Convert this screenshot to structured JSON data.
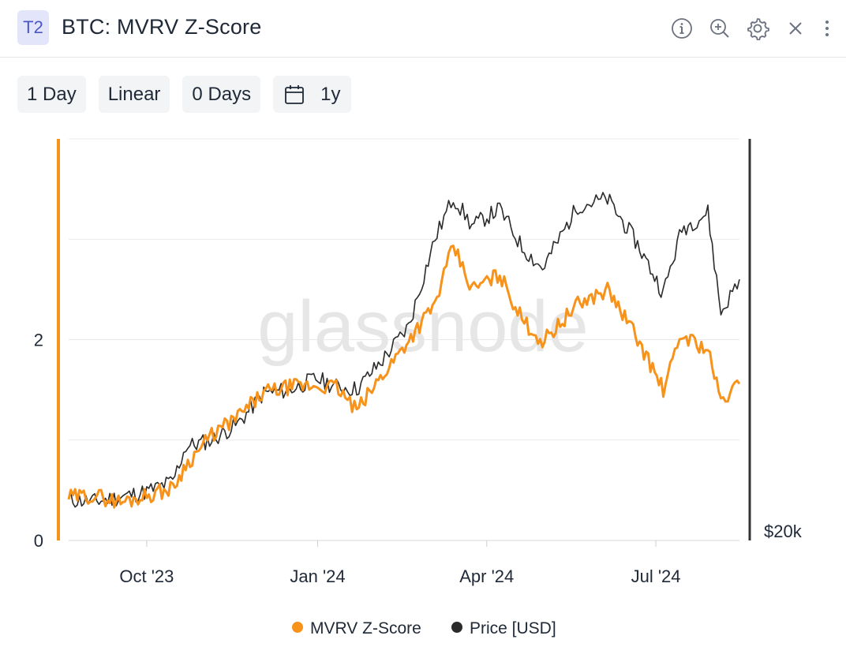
{
  "header": {
    "badge": "T2",
    "title": "BTC: MVRV Z-Score",
    "icons": [
      "info-icon",
      "zoom-in-icon",
      "gear-icon",
      "close-icon",
      "more-vertical-icon"
    ]
  },
  "toolbar": {
    "resolution": "1 Day",
    "scale": "Linear",
    "sma": "0 Days",
    "range": "1y",
    "range_icon": "calendar-icon"
  },
  "chart_data": {
    "type": "line",
    "title": "",
    "watermark": "glassnode",
    "x_ticks": [
      "Oct '23",
      "Jan '24",
      "Apr '24",
      "Jul '24"
    ],
    "y_left_ticks": [
      "0",
      "2"
    ],
    "y_left_range": [
      0,
      4
    ],
    "y_right_ticks": [
      "$20k"
    ],
    "y_right_range": [
      20000,
      80000
    ],
    "grid": true,
    "legend_position": "bottom-center",
    "legend": [
      "MVRV Z-Score",
      "Price [USD]"
    ],
    "colors": {
      "mvrv": "#f7931a",
      "price": "#2b2b2b",
      "left_axis": "#f7931a",
      "right_axis": "#333333",
      "grid": "#e8e8e8",
      "watermark": "#e6e6e6"
    },
    "x": [
      "2023-08-20",
      "2023-09-03",
      "2023-09-17",
      "2023-10-01",
      "2023-10-15",
      "2023-10-22",
      "2023-11-05",
      "2023-11-19",
      "2023-12-03",
      "2023-12-17",
      "2023-12-31",
      "2024-01-11",
      "2024-01-22",
      "2024-02-05",
      "2024-02-19",
      "2024-03-04",
      "2024-03-14",
      "2024-03-24",
      "2024-04-08",
      "2024-04-20",
      "2024-05-01",
      "2024-05-20",
      "2024-06-05",
      "2024-06-20",
      "2024-07-05",
      "2024-07-15",
      "2024-07-29",
      "2024-08-05",
      "2024-08-15"
    ],
    "series": [
      {
        "name": "MVRV Z-Score",
        "axis": "left",
        "values": [
          0.43,
          0.45,
          0.38,
          0.45,
          0.52,
          0.75,
          1.05,
          1.23,
          1.47,
          1.53,
          1.54,
          1.53,
          1.29,
          1.65,
          2.0,
          2.35,
          2.93,
          2.5,
          2.65,
          2.2,
          1.98,
          2.35,
          2.5,
          2.05,
          1.5,
          2.05,
          1.9,
          1.38,
          1.56
        ]
      },
      {
        "name": "Price [USD]",
        "axis": "right",
        "values": [
          26100,
          25800,
          26500,
          27300,
          28800,
          34000,
          35000,
          37400,
          42000,
          42500,
          44200,
          43000,
          42600,
          47000,
          52000,
          65000,
          71300,
          67000,
          69500,
          63800,
          60600,
          70000,
          71000,
          64800,
          57000,
          66500,
          69000,
          54000,
          59000
        ]
      }
    ]
  }
}
